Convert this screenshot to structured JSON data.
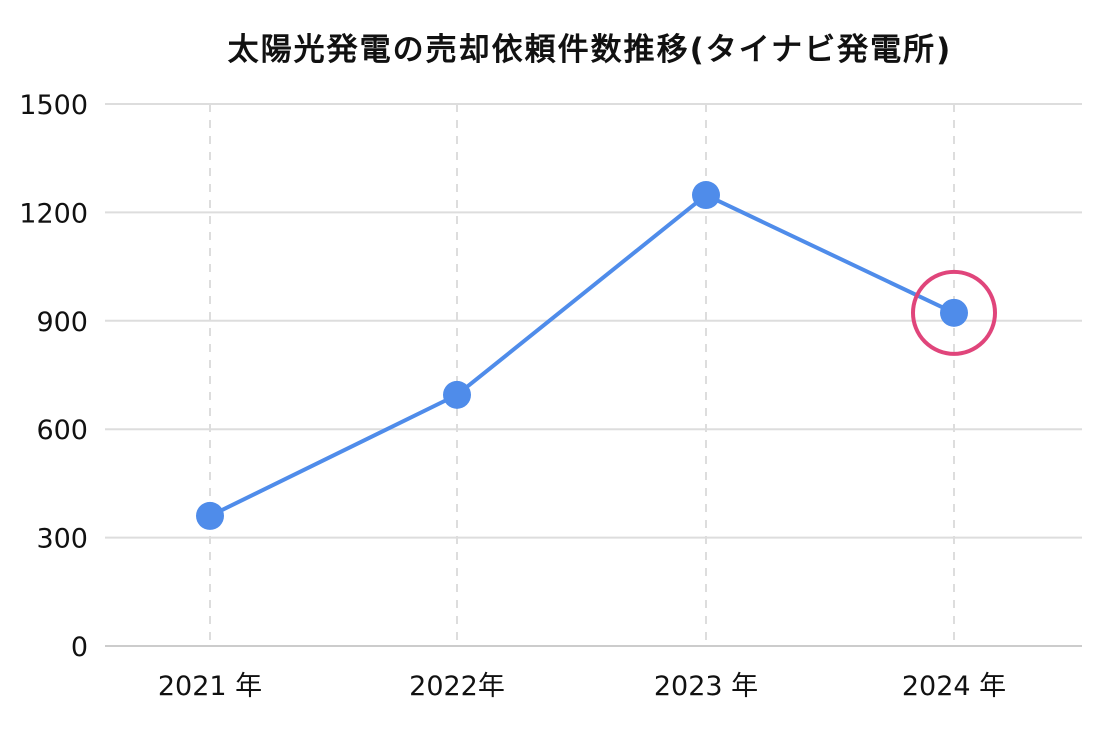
{
  "chart_data": {
    "type": "line",
    "title": "太陽光発電の売却依頼件数推移(タイナビ発電所)",
    "categories": [
      "2021 年",
      "2022年",
      "2023 年",
      "2024 年"
    ],
    "series": [
      {
        "values": [
          360,
          695,
          1248,
          922
        ]
      }
    ],
    "ylim": [
      0,
      1500
    ],
    "yticks": [
      "0",
      "300",
      "600",
      "900",
      "1200",
      "1500"
    ],
    "grid": true,
    "highlight_index": 3,
    "colors": {
      "line": "#4f8cea",
      "marker": "#4f8cea",
      "highlight": "#e0457b",
      "grid": "#dddddd",
      "vgrid": "#dddddd",
      "axis": "#cccccc"
    }
  }
}
